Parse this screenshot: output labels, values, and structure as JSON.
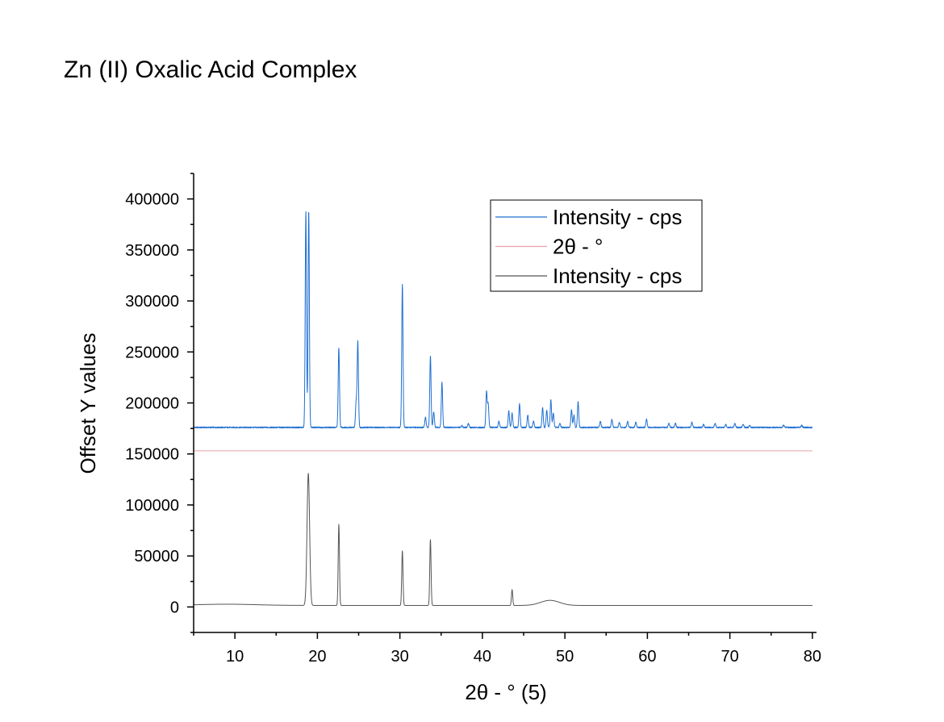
{
  "chart_data": {
    "type": "line",
    "title": "Zn (II) Oxalic Acid Complex",
    "xlabel": "2θ - ° (5)",
    "ylabel": "Offset Y values",
    "xlim": [
      5,
      80.5
    ],
    "ylim": [
      -25000,
      425000
    ],
    "x_ticks": [
      10,
      20,
      30,
      40,
      50,
      60,
      70,
      80
    ],
    "y_ticks": [
      0,
      50000,
      100000,
      150000,
      200000,
      250000,
      300000,
      350000,
      400000
    ],
    "legend_position": "top-right",
    "series": [
      {
        "name": "Intensity - cps",
        "color": "#1f6fd1",
        "baseline": 176000,
        "peaks": [
          [
            18.6,
            387000
          ],
          [
            18.95,
            388000
          ],
          [
            22.6,
            254000
          ],
          [
            24.9,
            260000
          ],
          [
            24.7,
            201000
          ],
          [
            30.3,
            316000
          ],
          [
            33.1,
            186000
          ],
          [
            33.7,
            246000
          ],
          [
            34.1,
            191000
          ],
          [
            35.1,
            220000
          ],
          [
            37.5,
            178000
          ],
          [
            38.3,
            180000
          ],
          [
            40.5,
            211000
          ],
          [
            40.7,
            199000
          ],
          [
            42.0,
            182000
          ],
          [
            43.2,
            192000
          ],
          [
            43.6,
            190000
          ],
          [
            44.5,
            199000
          ],
          [
            45.5,
            188000
          ],
          [
            46.2,
            182000
          ],
          [
            47.3,
            195000
          ],
          [
            47.8,
            193000
          ],
          [
            48.3,
            203000
          ],
          [
            48.6,
            190000
          ],
          [
            49.4,
            180000
          ],
          [
            50.8,
            193000
          ],
          [
            51.1,
            188000
          ],
          [
            51.6,
            201000
          ],
          [
            54.3,
            182000
          ],
          [
            55.7,
            184000
          ],
          [
            56.6,
            181000
          ],
          [
            57.6,
            182000
          ],
          [
            58.6,
            181000
          ],
          [
            59.9,
            184000
          ],
          [
            62.6,
            180000
          ],
          [
            63.4,
            180000
          ],
          [
            65.4,
            181000
          ],
          [
            66.8,
            179000
          ],
          [
            68.2,
            180000
          ],
          [
            69.5,
            179000
          ],
          [
            70.6,
            180000
          ],
          [
            71.6,
            179000
          ],
          [
            72.4,
            178000
          ],
          [
            76.5,
            178000
          ],
          [
            78.7,
            178000
          ]
        ]
      },
      {
        "name": "2θ - °",
        "color": "#e8a0a8",
        "constant": 153000
      },
      {
        "name": "Intensity - cps",
        "color": "#555555",
        "baseline": 1500,
        "peaks": [
          [
            18.9,
            131000
          ],
          [
            22.6,
            81000
          ],
          [
            30.3,
            55000
          ],
          [
            33.7,
            66000
          ],
          [
            43.6,
            17000
          ],
          [
            48.2,
            6500
          ]
        ]
      }
    ]
  }
}
